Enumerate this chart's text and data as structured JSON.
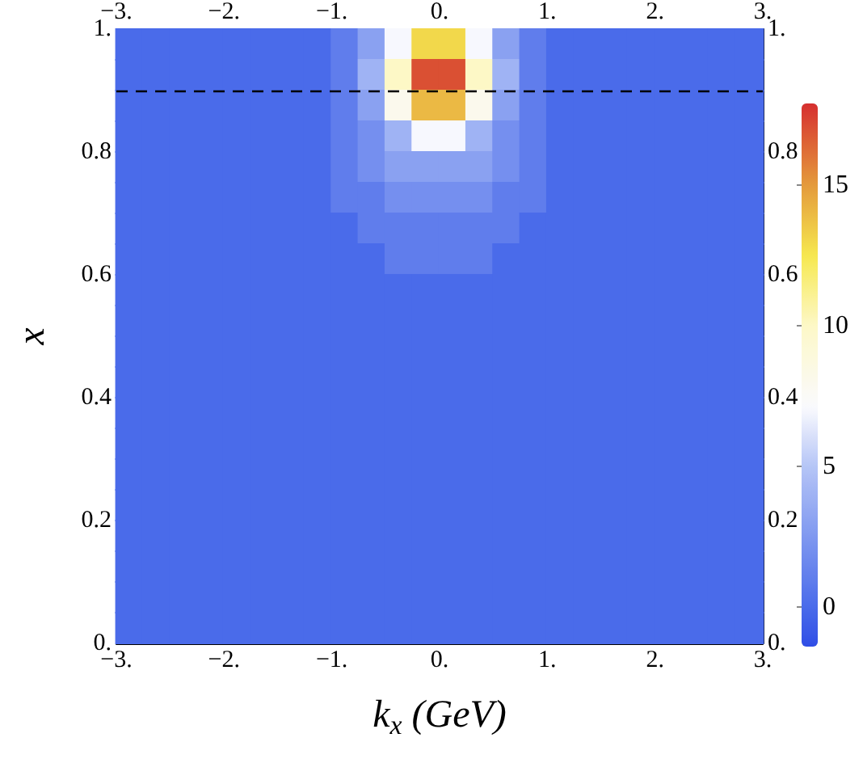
{
  "chart_data": {
    "type": "scatter",
    "marker": "square",
    "xlabel": "k$_{x}$ (GeV)",
    "ylabel": "x",
    "x": [
      -2.875,
      -2.625,
      -2.375,
      -2.125,
      -1.875,
      -1.625,
      -1.375,
      -1.125,
      -0.875,
      -0.625,
      -0.375,
      -0.125,
      0.125,
      0.375,
      0.625,
      0.875,
      1.125,
      1.375,
      1.625,
      1.875,
      2.125,
      2.375,
      2.625,
      2.875,
      -2.875,
      -2.625,
      -2.375,
      -2.125,
      -1.875,
      -1.625,
      -1.375,
      -1.125,
      -0.875,
      -0.625,
      -0.375,
      -0.125,
      0.125,
      0.375,
      0.625,
      0.875,
      1.125,
      1.375,
      1.625,
      1.875,
      2.125,
      2.375,
      2.625,
      2.875,
      -2.875,
      -2.625,
      -2.375,
      -2.125,
      -1.875,
      -1.625,
      -1.375,
      -1.125,
      -0.875,
      -0.625,
      -0.375,
      -0.125,
      0.125,
      0.375,
      0.625,
      0.875,
      1.125,
      1.375,
      1.625,
      1.875,
      2.125,
      2.375,
      2.625,
      2.875,
      -2.875,
      -2.625,
      -2.375,
      -2.125,
      -1.875,
      -1.625,
      -1.375,
      -1.125,
      -0.875,
      -0.625,
      -0.375,
      -0.125,
      0.125,
      0.375,
      0.625,
      0.875,
      1.125,
      1.375,
      1.625,
      1.875,
      2.125,
      2.375,
      2.625,
      2.875,
      -2.875,
      -2.625,
      -2.375,
      -2.125,
      -1.875,
      -1.625,
      -1.375,
      -1.125,
      -0.875,
      -0.625,
      -0.375,
      -0.125,
      0.125,
      0.375,
      0.625,
      0.875,
      1.125,
      1.375,
      1.625,
      1.875,
      2.125,
      2.375,
      2.625,
      2.875,
      -2.875,
      -2.625,
      -2.375,
      -2.125,
      -1.875,
      -1.625,
      -1.375,
      -1.125,
      -0.875,
      -0.625,
      -0.375,
      -0.125,
      0.125,
      0.375,
      0.625,
      0.875,
      1.125,
      1.375,
      1.625,
      1.875,
      2.125,
      2.375,
      2.625,
      2.875,
      -2.875,
      -2.625,
      -2.375,
      -2.125,
      -1.875,
      -1.625,
      -1.375,
      -1.125,
      -0.875,
      -0.625,
      -0.375,
      -0.125,
      0.125,
      0.375,
      0.625,
      0.875,
      1.125,
      1.375,
      1.625,
      1.875,
      2.125,
      2.375,
      2.625,
      2.875,
      -2.875,
      -2.625,
      -2.375,
      -2.125,
      -1.875,
      -1.625,
      -1.375,
      -1.125,
      -0.875,
      -0.625,
      -0.375,
      -0.125,
      0.125,
      0.375,
      0.625,
      0.875,
      1.125,
      1.375,
      1.625,
      1.875,
      2.125,
      2.375,
      2.625,
      2.875,
      -2.875,
      -2.625,
      -2.375,
      -2.125,
      -1.875,
      -1.625,
      -1.375,
      -1.125,
      -0.875,
      -0.625,
      -0.375,
      -0.125,
      0.125,
      0.375,
      0.625,
      0.875,
      1.125,
      1.375,
      1.625,
      1.875,
      2.125,
      2.375,
      2.625,
      2.875,
      -2.875,
      -2.625,
      -2.375,
      -2.125,
      -1.875,
      -1.625,
      -1.375,
      -1.125,
      -0.875,
      -0.625,
      -0.375,
      -0.125,
      0.125,
      0.375,
      0.625,
      0.875,
      1.125,
      1.375,
      1.625,
      1.875,
      2.125,
      2.375,
      2.625,
      2.875,
      -2.875,
      -2.625,
      -2.375,
      -2.125,
      -1.875,
      -1.625,
      -1.375,
      -1.125,
      -0.875,
      -0.625,
      -0.375,
      -0.125,
      0.125,
      0.375,
      0.625,
      0.875,
      1.125,
      1.375,
      1.625,
      1.875,
      2.125,
      2.375,
      2.625,
      2.875,
      -2.875,
      -2.625,
      -2.375,
      -2.125,
      -1.875,
      -1.625,
      -1.375,
      -1.125,
      -0.875,
      -0.625,
      -0.375,
      -0.125,
      0.125,
      0.375,
      0.625,
      0.875,
      1.125,
      1.375,
      1.625,
      1.875,
      2.125,
      2.375,
      2.625,
      2.875,
      -2.875,
      -2.625,
      -2.375,
      -2.125,
      -1.875,
      -1.625,
      -1.375,
      -1.125,
      -0.875,
      -0.625,
      -0.375,
      -0.125,
      0.125,
      0.375,
      0.625,
      0.875,
      1.125,
      1.375,
      1.625,
      1.875,
      2.125,
      2.375,
      2.625,
      2.875,
      -2.875,
      -2.625,
      -2.375,
      -2.125,
      -1.875,
      -1.625,
      -1.375,
      -1.125,
      -0.875,
      -0.625,
      -0.375,
      -0.125,
      0.125,
      0.375,
      0.625,
      0.875,
      1.125,
      1.375,
      1.625,
      1.875,
      2.125,
      2.375,
      2.625,
      2.875,
      -2.875,
      -2.625,
      -2.375,
      -2.125,
      -1.875,
      -1.625,
      -1.375,
      -1.125,
      -0.875,
      -0.625,
      -0.375,
      -0.125,
      0.125,
      0.375,
      0.625,
      0.875,
      1.125,
      1.375,
      1.625,
      1.875,
      2.125,
      2.375,
      2.625,
      2.875,
      -2.875,
      -2.625,
      -2.375,
      -2.125,
      -1.875,
      -1.625,
      -1.375,
      -1.125,
      -0.875,
      -0.625,
      -0.375,
      -0.125,
      0.125,
      0.375,
      0.625,
      0.875,
      1.125,
      1.375,
      1.625,
      1.875,
      2.125,
      2.375,
      2.625,
      2.875,
      -2.875,
      -2.625,
      -2.375,
      -2.125,
      -1.875,
      -1.625,
      -1.375,
      -1.125,
      -0.875,
      -0.625,
      -0.375,
      -0.125,
      0.125,
      0.375,
      0.625,
      0.875,
      1.125,
      1.375,
      1.625,
      1.875,
      2.125,
      2.375,
      2.625,
      2.875,
      -2.875,
      -2.625,
      -2.375,
      -2.125,
      -1.875,
      -1.625,
      -1.375,
      -1.125,
      -0.875,
      -0.625,
      -0.375,
      -0.125,
      0.125,
      0.375,
      0.625,
      0.875,
      1.125,
      1.375,
      1.625,
      1.875,
      2.125,
      2.375,
      2.625,
      2.875,
      -2.875,
      -2.625,
      -2.375,
      -2.125,
      -1.875,
      -1.625,
      -1.375,
      -1.125,
      -0.875,
      -0.625,
      -0.375,
      -0.125,
      0.125,
      0.375,
      0.625,
      0.875,
      1.125,
      1.375,
      1.625,
      1.875,
      2.125,
      2.375,
      2.625,
      2.875,
      -2.875,
      -2.625,
      -2.375,
      -2.125,
      -1.875,
      -1.625,
      -1.375,
      -1.125,
      -0.875,
      -0.625,
      -0.375,
      -0.125,
      0.125,
      0.375,
      0.625,
      0.875,
      1.125,
      1.375,
      1.625,
      1.875,
      2.125,
      2.375,
      2.625,
      2.875
    ],
    "values": [
      0.975,
      0.975,
      0.975,
      0.975,
      0.975,
      0.975,
      0.975,
      0.975,
      0.975,
      0.975,
      0.975,
      0.975,
      0.975,
      0.975,
      0.975,
      0.975,
      0.975,
      0.975,
      0.975,
      0.975,
      0.975,
      0.975,
      0.975,
      0.975,
      0.925,
      0.925,
      0.925,
      0.925,
      0.925,
      0.925,
      0.925,
      0.925,
      0.925,
      0.925,
      0.925,
      0.925,
      0.925,
      0.925,
      0.925,
      0.925,
      0.925,
      0.925,
      0.925,
      0.925,
      0.925,
      0.925,
      0.925,
      0.925,
      0.875,
      0.875,
      0.875,
      0.875,
      0.875,
      0.875,
      0.875,
      0.875,
      0.875,
      0.875,
      0.875,
      0.875,
      0.875,
      0.875,
      0.875,
      0.875,
      0.875,
      0.875,
      0.875,
      0.875,
      0.875,
      0.875,
      0.875,
      0.875,
      0.825,
      0.825,
      0.825,
      0.825,
      0.825,
      0.825,
      0.825,
      0.825,
      0.825,
      0.825,
      0.825,
      0.825,
      0.825,
      0.825,
      0.825,
      0.825,
      0.825,
      0.825,
      0.825,
      0.825,
      0.825,
      0.825,
      0.825,
      0.825,
      0.775,
      0.775,
      0.775,
      0.775,
      0.775,
      0.775,
      0.775,
      0.775,
      0.775,
      0.775,
      0.775,
      0.775,
      0.775,
      0.775,
      0.775,
      0.775,
      0.775,
      0.775,
      0.775,
      0.775,
      0.775,
      0.775,
      0.775,
      0.775,
      0.725,
      0.725,
      0.725,
      0.725,
      0.725,
      0.725,
      0.725,
      0.725,
      0.725,
      0.725,
      0.725,
      0.725,
      0.725,
      0.725,
      0.725,
      0.725,
      0.725,
      0.725,
      0.725,
      0.725,
      0.725,
      0.725,
      0.725,
      0.725,
      0.675,
      0.675,
      0.675,
      0.675,
      0.675,
      0.675,
      0.675,
      0.675,
      0.675,
      0.675,
      0.675,
      0.675,
      0.675,
      0.675,
      0.675,
      0.675,
      0.675,
      0.675,
      0.675,
      0.675,
      0.675,
      0.675,
      0.675,
      0.675,
      0.625,
      0.625,
      0.625,
      0.625,
      0.625,
      0.625,
      0.625,
      0.625,
      0.625,
      0.625,
      0.625,
      0.625,
      0.625,
      0.625,
      0.625,
      0.625,
      0.625,
      0.625,
      0.625,
      0.625,
      0.625,
      0.625,
      0.625,
      0.625,
      0.575,
      0.575,
      0.575,
      0.575,
      0.575,
      0.575,
      0.575,
      0.575,
      0.575,
      0.575,
      0.575,
      0.575,
      0.575,
      0.575,
      0.575,
      0.575,
      0.575,
      0.575,
      0.575,
      0.575,
      0.575,
      0.575,
      0.575,
      0.575,
      0.525,
      0.525,
      0.525,
      0.525,
      0.525,
      0.525,
      0.525,
      0.525,
      0.525,
      0.525,
      0.525,
      0.525,
      0.525,
      0.525,
      0.525,
      0.525,
      0.525,
      0.525,
      0.525,
      0.525,
      0.525,
      0.525,
      0.525,
      0.525,
      0.475,
      0.475,
      0.475,
      0.475,
      0.475,
      0.475,
      0.475,
      0.475,
      0.475,
      0.475,
      0.475,
      0.475,
      0.475,
      0.475,
      0.475,
      0.475,
      0.475,
      0.475,
      0.475,
      0.475,
      0.475,
      0.475,
      0.475,
      0.475,
      0.425,
      0.425,
      0.425,
      0.425,
      0.425,
      0.425,
      0.425,
      0.425,
      0.425,
      0.425,
      0.425,
      0.425,
      0.425,
      0.425,
      0.425,
      0.425,
      0.425,
      0.425,
      0.425,
      0.425,
      0.425,
      0.425,
      0.425,
      0.425,
      0.375,
      0.375,
      0.375,
      0.375,
      0.375,
      0.375,
      0.375,
      0.375,
      0.375,
      0.375,
      0.375,
      0.375,
      0.375,
      0.375,
      0.375,
      0.375,
      0.375,
      0.375,
      0.375,
      0.375,
      0.375,
      0.375,
      0.375,
      0.375,
      0.325,
      0.325,
      0.325,
      0.325,
      0.325,
      0.325,
      0.325,
      0.325,
      0.325,
      0.325,
      0.325,
      0.325,
      0.325,
      0.325,
      0.325,
      0.325,
      0.325,
      0.325,
      0.325,
      0.325,
      0.325,
      0.325,
      0.325,
      0.325,
      0.275,
      0.275,
      0.275,
      0.275,
      0.275,
      0.275,
      0.275,
      0.275,
      0.275,
      0.275,
      0.275,
      0.275,
      0.275,
      0.275,
      0.275,
      0.275,
      0.275,
      0.275,
      0.275,
      0.275,
      0.275,
      0.275,
      0.275,
      0.275,
      0.225,
      0.225,
      0.225,
      0.225,
      0.225,
      0.225,
      0.225,
      0.225,
      0.225,
      0.225,
      0.225,
      0.225,
      0.225,
      0.225,
      0.225,
      0.225,
      0.225,
      0.225,
      0.225,
      0.225,
      0.225,
      0.225,
      0.225,
      0.225,
      0.175,
      0.175,
      0.175,
      0.175,
      0.175,
      0.175,
      0.175,
      0.175,
      0.175,
      0.175,
      0.175,
      0.175,
      0.175,
      0.175,
      0.175,
      0.175,
      0.175,
      0.175,
      0.175,
      0.175,
      0.175,
      0.175,
      0.175,
      0.175,
      0.125,
      0.125,
      0.125,
      0.125,
      0.125,
      0.125,
      0.125,
      0.125,
      0.125,
      0.125,
      0.125,
      0.125,
      0.125,
      0.125,
      0.125,
      0.125,
      0.125,
      0.125,
      0.125,
      0.125,
      0.125,
      0.125,
      0.125,
      0.125,
      0.075,
      0.075,
      0.075,
      0.075,
      0.075,
      0.075,
      0.075,
      0.075,
      0.075,
      0.075,
      0.075,
      0.075,
      0.075,
      0.075,
      0.075,
      0.075,
      0.075,
      0.075,
      0.075,
      0.075,
      0.075,
      0.075,
      0.075,
      0.075,
      0.025,
      0.025,
      0.025,
      0.025,
      0.025,
      0.025,
      0.025,
      0.025,
      0.025,
      0.025,
      0.025,
      0.025,
      0.025,
      0.025,
      0.025,
      0.025,
      0.025,
      0.025,
      0.025,
      0.025,
      0.025,
      0.025,
      0.025,
      0.025
    ],
    "cvalues": [
      0,
      0,
      0,
      0,
      0,
      0,
      0,
      0,
      1,
      3,
      7,
      13,
      13,
      7,
      3,
      1,
      0,
      0,
      0,
      0,
      0,
      0,
      0,
      0,
      0,
      0,
      0,
      0,
      0,
      0,
      0,
      0,
      1,
      4,
      10,
      17,
      17,
      10,
      4,
      1,
      0,
      0,
      0,
      0,
      0,
      0,
      0,
      0,
      0,
      0,
      0,
      0,
      0,
      0,
      0,
      0,
      1,
      3,
      8,
      14,
      14,
      8,
      3,
      1,
      0,
      0,
      0,
      0,
      0,
      0,
      0,
      0,
      0,
      0,
      0,
      0,
      0,
      0,
      0,
      0,
      1,
      2,
      4,
      7,
      7,
      4,
      2,
      1,
      0,
      0,
      0,
      0,
      0,
      0,
      0,
      0,
      0,
      0,
      0,
      0,
      0,
      0,
      0,
      0,
      1,
      2,
      3,
      3,
      3,
      3,
      2,
      1,
      0,
      0,
      0,
      0,
      0,
      0,
      0,
      0,
      0,
      0,
      0,
      0,
      0,
      0,
      0,
      0,
      1,
      1,
      2,
      2,
      2,
      2,
      1,
      1,
      0,
      0,
      0,
      0,
      0,
      0,
      0,
      0,
      0,
      0,
      0,
      0,
      0,
      0,
      0,
      0,
      0,
      1,
      1,
      1,
      1,
      1,
      1,
      0,
      0,
      0,
      0,
      0,
      0,
      0,
      0,
      0,
      0,
      0,
      0,
      0,
      0,
      0,
      0,
      0,
      0,
      0,
      1,
      1,
      1,
      1,
      0,
      0,
      0,
      0,
      0,
      0,
      0,
      0,
      0,
      0,
      0,
      0,
      0,
      0,
      0,
      0,
      0,
      0,
      0,
      0,
      0,
      0,
      0,
      0,
      0,
      0,
      0,
      0,
      0,
      0,
      0,
      0,
      0,
      0,
      0,
      0,
      0,
      0,
      0,
      0,
      0,
      0,
      0,
      0,
      0,
      0,
      0,
      0,
      0,
      0,
      0,
      0,
      0,
      0,
      0,
      0,
      0,
      0,
      0,
      0,
      0,
      0,
      0,
      0,
      0,
      0,
      0,
      0,
      0,
      0,
      0,
      0,
      0,
      0,
      0,
      0,
      0,
      0,
      0,
      0,
      0,
      0,
      0,
      0,
      0,
      0,
      0,
      0,
      0,
      0,
      0,
      0,
      0,
      0,
      0,
      0,
      0,
      0,
      0,
      0,
      0,
      0,
      0,
      0,
      0,
      0,
      0,
      0,
      0,
      0,
      0,
      0,
      0,
      0,
      0,
      0,
      0,
      0,
      0,
      0,
      0,
      0,
      0,
      0,
      0,
      0,
      0,
      0,
      0,
      0,
      0,
      0,
      0,
      0,
      0,
      0,
      0,
      0,
      0,
      0,
      0,
      0,
      0,
      0,
      0,
      0,
      0,
      0,
      0,
      0,
      0,
      0,
      0,
      0,
      0,
      0,
      0,
      0,
      0,
      0,
      0,
      0,
      0,
      0,
      0,
      0,
      0,
      0,
      0,
      0,
      0,
      0,
      0,
      0,
      0,
      0,
      0,
      0,
      0,
      0,
      0,
      0,
      0,
      0,
      0,
      0,
      0,
      0,
      0,
      0,
      0,
      0,
      0,
      0,
      0,
      0,
      0,
      0,
      0,
      0,
      0,
      0,
      0,
      0,
      0,
      0,
      0,
      0,
      0,
      0,
      0,
      0,
      0,
      0,
      0,
      0,
      0,
      0,
      0,
      0,
      0,
      0,
      0,
      0,
      0,
      0,
      0,
      0,
      0,
      0,
      0,
      0,
      0,
      0,
      0,
      0,
      0,
      0,
      0,
      0,
      0,
      0,
      0,
      0,
      0,
      0,
      0,
      0,
      0,
      0,
      0,
      0,
      0,
      0,
      0,
      0,
      0,
      0,
      0,
      0,
      0,
      0,
      0,
      0,
      0,
      0,
      0,
      0,
      0,
      0,
      0,
      0,
      0,
      0,
      0,
      0,
      0,
      0,
      0,
      0,
      0,
      0,
      0,
      0,
      0,
      0,
      0,
      0,
      0,
      0,
      0,
      0,
      0,
      0,
      0,
      0,
      0,
      0
    ],
    "xlim": [
      -3,
      3
    ],
    "xticks": [
      {
        "value": -3,
        "label": "−3."
      },
      {
        "value": -2,
        "label": "−2."
      },
      {
        "value": -1,
        "label": "−1."
      },
      {
        "value": 0,
        "label": "0."
      },
      {
        "value": 1,
        "label": "1."
      },
      {
        "value": 2,
        "label": "2."
      },
      {
        "value": 3,
        "label": "3."
      }
    ],
    "x2lim": [
      -3,
      3
    ],
    "x2ticks": [
      {
        "value": -3,
        "label": "−3."
      },
      {
        "value": -2,
        "label": "−2."
      },
      {
        "value": -1,
        "label": "−1."
      },
      {
        "value": 0,
        "label": "0."
      },
      {
        "value": 1,
        "label": "1."
      },
      {
        "value": 2,
        "label": "2."
      },
      {
        "value": 3,
        "label": "3."
      }
    ],
    "ylim": [
      0,
      1
    ],
    "yticks": [
      {
        "value": 0,
        "label": "0."
      },
      0.2,
      0.4,
      0.6,
      0.8,
      {
        "value": 1,
        "label": "1."
      }
    ],
    "y2lim": [
      0,
      1
    ],
    "y2ticks": [
      {
        "value": 0,
        "label": "0."
      },
      0.2,
      0.4,
      0.6,
      0.8,
      {
        "value": 1,
        "label": "1."
      }
    ],
    "clim": [
      -1.4,
      17.9
    ],
    "cticks": [
      0,
      5,
      10,
      15
    ],
    "ref_lines": [
      {
        "axis": "y",
        "value": 0.9,
        "color": "#000000",
        "line_style": "dashed"
      }
    ]
  }
}
